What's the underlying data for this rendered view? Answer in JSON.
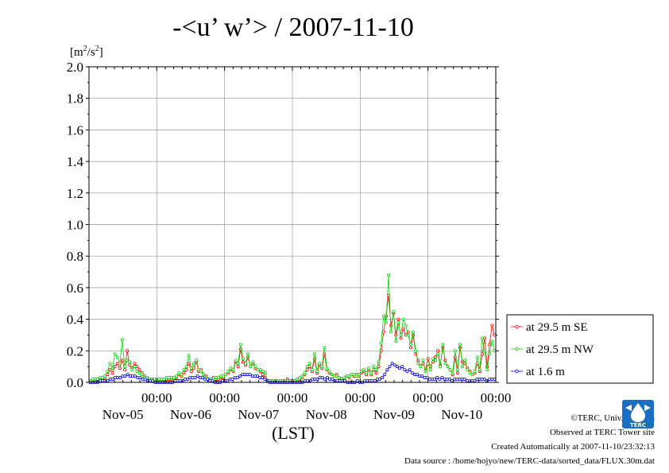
{
  "chart_data": {
    "type": "line",
    "title": "-<u’ w’> / 2007-11-10",
    "unit_label": {
      "pre": "[m",
      "sup1": "2",
      "mid": "/s",
      "sup2": "2",
      "post": "]"
    },
    "xlabel": "(LST)",
    "ylim": [
      0,
      2.0
    ],
    "y_ticks": [
      "0.0",
      "0.2",
      "0.4",
      "0.6",
      "0.8",
      "1.0",
      "1.2",
      "1.4",
      "1.6",
      "1.8",
      "2.0"
    ],
    "x_range_days": [
      0,
      6
    ],
    "x_ticks": [
      {
        "time": "00:00",
        "date": "Nov-05"
      },
      {
        "time": "00:00",
        "date": "Nov-06"
      },
      {
        "time": "00:00",
        "date": "Nov-07"
      },
      {
        "time": "00:00",
        "date": "Nov-08"
      },
      {
        "time": "00:00",
        "date": "Nov-09"
      },
      {
        "time": "00:00",
        "date": "Nov-10"
      }
    ],
    "grid": true,
    "legend_position": "right",
    "series": [
      {
        "name": "at 29.5 m SE",
        "color": "#ff0000",
        "values": [
          0.01,
          0.01,
          0.02,
          0.01,
          0.02,
          0.02,
          0.03,
          0.05,
          0.08,
          0.06,
          0.1,
          0.12,
          0.09,
          0.14,
          0.08,
          0.2,
          0.11,
          0.09,
          0.12,
          0.1,
          0.08,
          0.06,
          0.04,
          0.03,
          0.02,
          0.02,
          0.02,
          0.01,
          0.02,
          0.01,
          0.02,
          0.02,
          0.02,
          0.02,
          0.02,
          0.03,
          0.05,
          0.04,
          0.06,
          0.08,
          0.12,
          0.07,
          0.09,
          0.13,
          0.07,
          0.08,
          0.05,
          0.04,
          0.02,
          0.02,
          0.03,
          0.02,
          0.02,
          0.03,
          0.03,
          0.05,
          0.06,
          0.08,
          0.07,
          0.13,
          0.1,
          0.21,
          0.13,
          0.11,
          0.16,
          0.1,
          0.12,
          0.09,
          0.08,
          0.07,
          0.05,
          0.03,
          0.01,
          0.01,
          0.01,
          0.01,
          0.01,
          0.01,
          0.01,
          0.01,
          0.02,
          0.01,
          0.01,
          0.01,
          0.02,
          0.02,
          0.03,
          0.05,
          0.08,
          0.1,
          0.07,
          0.15,
          0.06,
          0.11,
          0.09,
          0.18,
          0.08,
          0.06,
          0.05,
          0.04,
          0.05,
          0.03,
          0.02,
          0.02,
          0.04,
          0.03,
          0.05,
          0.04,
          0.05,
          0.04,
          0.06,
          0.07,
          0.05,
          0.08,
          0.05,
          0.08,
          0.06,
          0.1,
          0.2,
          0.32,
          0.42,
          0.55,
          0.36,
          0.44,
          0.3,
          0.4,
          0.28,
          0.34,
          0.3,
          0.32,
          0.22,
          0.3,
          0.18,
          0.14,
          0.1,
          0.12,
          0.08,
          0.15,
          0.1,
          0.13,
          0.16,
          0.2,
          0.11,
          0.22,
          0.14,
          0.1,
          0.08,
          0.05,
          0.16,
          0.06,
          0.22,
          0.13,
          0.12,
          0.09,
          0.07,
          0.05,
          0.06,
          0.12,
          0.07,
          0.18,
          0.28,
          0.1,
          0.24,
          0.36,
          0.3
        ]
      },
      {
        "name": "at 29.5 m NW",
        "color": "#00d800",
        "values": [
          0.01,
          0.02,
          0.02,
          0.02,
          0.03,
          0.03,
          0.04,
          0.07,
          0.12,
          0.09,
          0.18,
          0.16,
          0.12,
          0.27,
          0.1,
          0.14,
          0.13,
          0.08,
          0.1,
          0.07,
          0.06,
          0.05,
          0.03,
          0.03,
          0.02,
          0.02,
          0.02,
          0.02,
          0.02,
          0.02,
          0.02,
          0.03,
          0.03,
          0.03,
          0.03,
          0.04,
          0.06,
          0.05,
          0.08,
          0.1,
          0.17,
          0.09,
          0.12,
          0.14,
          0.08,
          0.07,
          0.05,
          0.03,
          0.02,
          0.02,
          0.02,
          0.03,
          0.03,
          0.04,
          0.04,
          0.05,
          0.07,
          0.09,
          0.08,
          0.14,
          0.12,
          0.24,
          0.15,
          0.12,
          0.18,
          0.1,
          0.13,
          0.1,
          0.08,
          0.08,
          0.07,
          0.06,
          0.01,
          0.01,
          0.01,
          0.01,
          0.01,
          0.01,
          0.01,
          0.01,
          0.01,
          0.01,
          0.01,
          0.01,
          0.02,
          0.03,
          0.04,
          0.06,
          0.1,
          0.12,
          0.08,
          0.18,
          0.07,
          0.12,
          0.1,
          0.22,
          0.09,
          0.07,
          0.05,
          0.04,
          0.04,
          0.03,
          0.02,
          0.03,
          0.04,
          0.04,
          0.05,
          0.05,
          0.04,
          0.05,
          0.07,
          0.08,
          0.06,
          0.09,
          0.06,
          0.1,
          0.08,
          0.13,
          0.25,
          0.42,
          0.38,
          0.68,
          0.32,
          0.45,
          0.26,
          0.38,
          0.3,
          0.4,
          0.36,
          0.3,
          0.24,
          0.32,
          0.2,
          0.12,
          0.1,
          0.14,
          0.07,
          0.12,
          0.08,
          0.15,
          0.14,
          0.18,
          0.1,
          0.24,
          0.12,
          0.1,
          0.08,
          0.06,
          0.2,
          0.08,
          0.24,
          0.1,
          0.14,
          0.08,
          0.06,
          0.05,
          0.07,
          0.16,
          0.08,
          0.28,
          0.2,
          0.08,
          0.18,
          0.26,
          0.2
        ]
      },
      {
        "name": "at 1.6 m",
        "color": "#0000ff",
        "values": [
          0.0,
          0.0,
          0.0,
          0.0,
          0.01,
          0.01,
          0.01,
          0.01,
          0.02,
          0.02,
          0.03,
          0.03,
          0.03,
          0.04,
          0.04,
          0.05,
          0.04,
          0.04,
          0.04,
          0.03,
          0.03,
          0.02,
          0.02,
          0.01,
          0.01,
          0.01,
          0.0,
          0.0,
          0.0,
          0.0,
          0.0,
          0.0,
          0.0,
          0.0,
          0.01,
          0.01,
          0.01,
          0.01,
          0.02,
          0.02,
          0.03,
          0.03,
          0.03,
          0.04,
          0.03,
          0.03,
          0.02,
          0.02,
          0.01,
          0.01,
          0.0,
          0.0,
          0.0,
          0.01,
          0.01,
          0.01,
          0.02,
          0.02,
          0.03,
          0.03,
          0.04,
          0.05,
          0.05,
          0.05,
          0.05,
          0.04,
          0.04,
          0.04,
          0.03,
          0.03,
          0.02,
          0.01,
          0.0,
          0.0,
          0.0,
          0.0,
          0.0,
          0.0,
          0.0,
          0.0,
          0.0,
          0.0,
          0.0,
          0.0,
          0.0,
          0.0,
          0.01,
          0.01,
          0.01,
          0.02,
          0.02,
          0.02,
          0.03,
          0.03,
          0.02,
          0.03,
          0.02,
          0.02,
          0.01,
          0.01,
          0.01,
          0.01,
          0.01,
          0.0,
          0.0,
          0.0,
          0.0,
          0.01,
          0.0,
          0.0,
          0.01,
          0.01,
          0.01,
          0.01,
          0.01,
          0.02,
          0.02,
          0.03,
          0.05,
          0.08,
          0.1,
          0.12,
          0.11,
          0.1,
          0.09,
          0.1,
          0.08,
          0.07,
          0.08,
          0.06,
          0.05,
          0.05,
          0.04,
          0.04,
          0.03,
          0.03,
          0.02,
          0.02,
          0.02,
          0.03,
          0.02,
          0.03,
          0.02,
          0.02,
          0.02,
          0.01,
          0.02,
          0.02,
          0.02,
          0.02,
          0.02,
          0.01,
          0.01,
          0.01,
          0.01,
          0.02,
          0.02,
          0.02,
          0.02,
          0.01,
          0.02,
          0.02,
          0.02
        ]
      }
    ]
  },
  "footer": {
    "copyright": "©TERC, Univ. Tsukuba",
    "observed": "Observed at TERC Tower site",
    "created": "Created Automatically at 2007-11-10/23:32:13",
    "source": "Data source : /home/hojyo/new/TERC-data/sorted_data/FLUX.30m.dat"
  },
  "logo": {
    "text": "TERC",
    "color": "#1a6fc4"
  }
}
